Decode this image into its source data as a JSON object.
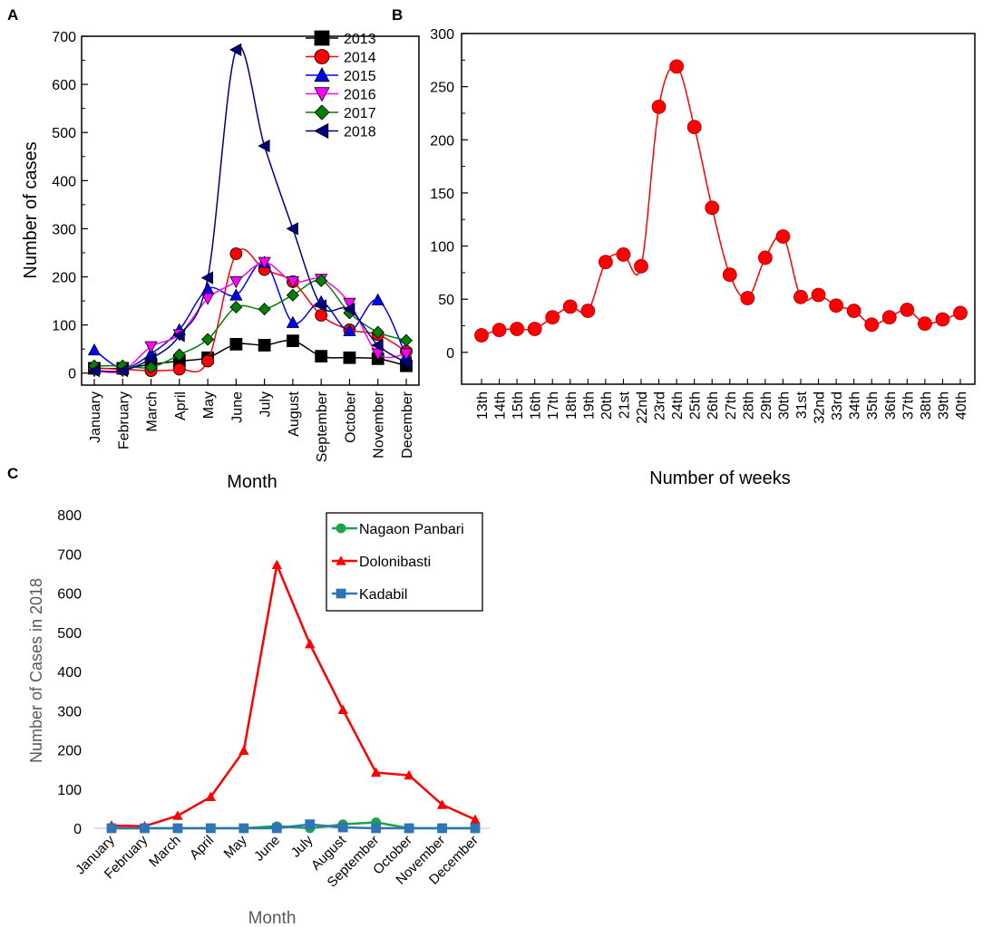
{
  "panel_labels": [
    "A",
    "B",
    "C"
  ],
  "chart_data": [
    {
      "panel": "A",
      "type": "line",
      "title": "",
      "xlabel": "Month",
      "ylabel": "Number of cases",
      "categories": [
        "January",
        "February",
        "March",
        "April",
        "May",
        "June",
        "July",
        "August",
        "September",
        "October",
        "November",
        "December"
      ],
      "ylim": [
        -25,
        700
      ],
      "yticks": [
        0,
        100,
        200,
        300,
        400,
        500,
        600,
        700
      ],
      "legend_position": "top-right",
      "series": [
        {
          "name": "2013",
          "marker": "square",
          "color": "#000000",
          "values": [
            10,
            10,
            18,
            25,
            32,
            60,
            58,
            67,
            35,
            32,
            30,
            15
          ]
        },
        {
          "name": "2014",
          "marker": "circle",
          "color": "#ff0000",
          "values": [
            10,
            8,
            5,
            8,
            25,
            248,
            215,
            190,
            120,
            90,
            80,
            45
          ]
        },
        {
          "name": "2015",
          "marker": "triangle-up",
          "color": "#0000ff",
          "values": [
            48,
            10,
            40,
            90,
            175,
            162,
            230,
            105,
            148,
            88,
            152,
            35
          ]
        },
        {
          "name": "2016",
          "marker": "triangle-down",
          "color": "#ff00ff",
          "values": [
            5,
            5,
            55,
            80,
            155,
            190,
            230,
            190,
            195,
            145,
            40,
            40
          ]
        },
        {
          "name": "2017",
          "marker": "diamond",
          "color": "#008000",
          "values": [
            15,
            15,
            12,
            38,
            70,
            137,
            133,
            162,
            192,
            125,
            85,
            68
          ]
        },
        {
          "name": "2018",
          "marker": "triangle-left",
          "color": "#000080",
          "values": [
            5,
            5,
            30,
            78,
            198,
            672,
            472,
            300,
            140,
            133,
            58,
            22
          ]
        }
      ]
    },
    {
      "panel": "B",
      "type": "line",
      "title": "",
      "xlabel": "Number of weeks",
      "ylabel": "",
      "categories": [
        "13th",
        "14th",
        "15th",
        "16th",
        "17th",
        "18th",
        "19th",
        "20th",
        "21st",
        "22nd",
        "23rd",
        "24th",
        "25th",
        "26th",
        "27th",
        "28th",
        "29th",
        "30th",
        "31st",
        "32nd",
        "33rd",
        "34th",
        "35th",
        "36th",
        "37th",
        "38th",
        "39th",
        "40th"
      ],
      "ylim": [
        -30,
        300
      ],
      "yticks": [
        0,
        50,
        100,
        150,
        200,
        250,
        300
      ],
      "series": [
        {
          "name": "cases",
          "marker": "circle",
          "color": "#ff0000",
          "values": [
            16,
            21,
            22,
            22,
            33,
            43,
            39,
            85,
            92,
            81,
            231,
            269,
            212,
            136,
            73,
            51,
            89,
            109,
            52,
            54,
            44,
            39,
            26,
            33,
            40,
            27,
            31,
            37
          ]
        }
      ]
    },
    {
      "panel": "C",
      "type": "line",
      "title": "",
      "xlabel": "Month",
      "ylabel": "Number of Cases in 2018",
      "categories": [
        "January",
        "February",
        "March",
        "April",
        "May",
        "June",
        "July",
        "August",
        "September",
        "October",
        "November",
        "December"
      ],
      "ylim": [
        0,
        800
      ],
      "yticks": [
        0,
        100,
        200,
        300,
        400,
        500,
        600,
        700,
        800
      ],
      "legend_position": "top-right",
      "series": [
        {
          "name": "Nagaon Panbari",
          "marker": "circle",
          "color": "#1aa34a",
          "values": [
            0,
            0,
            0,
            0,
            0,
            5,
            0,
            10,
            15,
            0,
            0,
            0
          ]
        },
        {
          "name": "Dolonibasti",
          "marker": "triangle-up",
          "color": "#ff0000",
          "values": [
            7,
            5,
            32,
            80,
            198,
            672,
            470,
            302,
            142,
            135,
            60,
            22
          ]
        },
        {
          "name": "Kadabil",
          "marker": "square",
          "color": "#2e75b6",
          "values": [
            0,
            0,
            0,
            0,
            0,
            0,
            10,
            2,
            0,
            0,
            0,
            0
          ]
        }
      ]
    }
  ]
}
